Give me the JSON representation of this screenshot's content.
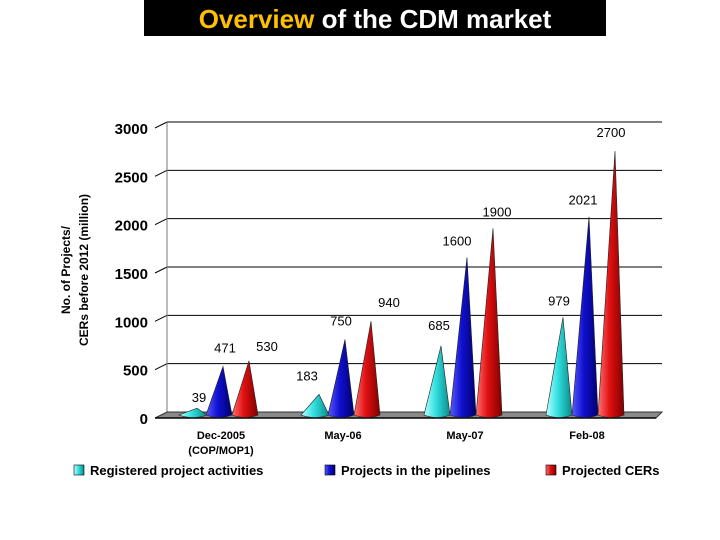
{
  "title": {
    "highlight": "Overview",
    "rest": "of the CDM market"
  },
  "chart_data": {
    "type": "bar",
    "ylabel_line1": "No. of Projects/",
    "ylabel_line2": "CERs  before 2012 (million)",
    "ylim": [
      0,
      3000
    ],
    "yticks": [
      0,
      500,
      1000,
      1500,
      2000,
      2500,
      3000
    ],
    "categories": [
      "Dec-2005\n(COP/MOP1)",
      "May-06",
      "May-07",
      "Feb-08"
    ],
    "category_lines": [
      [
        "Dec-2005",
        "(COP/MOP1)"
      ],
      [
        "May-06"
      ],
      [
        "May-07"
      ],
      [
        "Feb-08"
      ]
    ],
    "series": [
      {
        "name": "Registered project activities",
        "color": "#33e0e0",
        "values": [
          39,
          183,
          685,
          979
        ]
      },
      {
        "name": "Projects in the pipelines",
        "color": "#1010d0",
        "values": [
          471,
          750,
          1600,
          2021
        ]
      },
      {
        "name": "Projected CERs",
        "color": "#e01010",
        "values": [
          530,
          940,
          1900,
          2700
        ]
      }
    ],
    "grid": true,
    "legend": "bottom"
  }
}
